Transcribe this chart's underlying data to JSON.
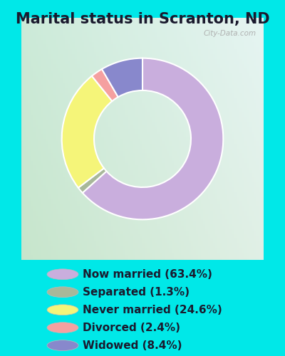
{
  "title": "Marital status in Scranton, ND",
  "slices": [
    63.4,
    1.3,
    24.6,
    2.4,
    8.4
  ],
  "labels": [
    "Now married (63.4%)",
    "Separated (1.3%)",
    "Never married (24.6%)",
    "Divorced (2.4%)",
    "Widowed (8.4%)"
  ],
  "colors": [
    "#c9aedd",
    "#a8b89a",
    "#f5f579",
    "#f5a0a0",
    "#8888cc"
  ],
  "bg_cyan": "#00e8e8",
  "watermark": "City-Data.com",
  "donut_width": 0.4,
  "start_angle": 90,
  "title_fontsize": 15,
  "legend_fontsize": 11,
  "title_color": "#1a1a2e",
  "legend_text_color": "#1a1a2e"
}
